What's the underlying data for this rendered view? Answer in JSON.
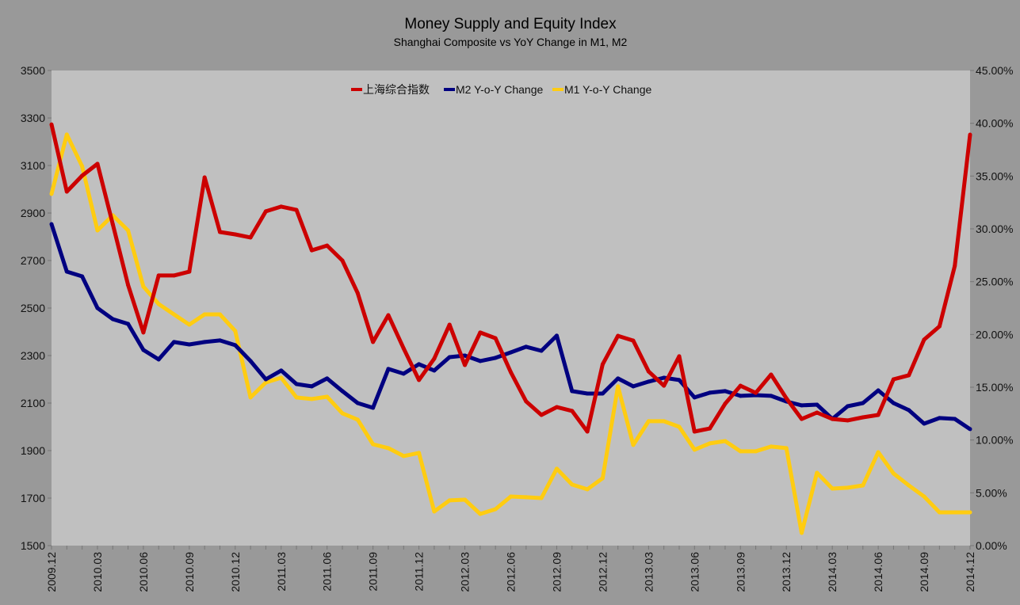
{
  "chart_data": {
    "type": "line",
    "title": "Money Supply and Equity Index",
    "subtitle": "Shanghai Composite vs YoY Change in M1, M2",
    "x": [
      "2009.12",
      "2010.01",
      "2010.02",
      "2010.03",
      "2010.04",
      "2010.05",
      "2010.06",
      "2010.07",
      "2010.08",
      "2010.09",
      "2010.10",
      "2010.11",
      "2010.12",
      "2011.01",
      "2011.02",
      "2011.03",
      "2011.04",
      "2011.05",
      "2011.06",
      "2011.07",
      "2011.08",
      "2011.09",
      "2011.10",
      "2011.11",
      "2011.12",
      "2012.01",
      "2012.02",
      "2012.03",
      "2012.04",
      "2012.05",
      "2012.06",
      "2012.07",
      "2012.08",
      "2012.09",
      "2012.10",
      "2012.11",
      "2012.12",
      "2013.01",
      "2013.02",
      "2013.03",
      "2013.04",
      "2013.05",
      "2013.06",
      "2013.07",
      "2013.08",
      "2013.09",
      "2013.10",
      "2013.11",
      "2013.12",
      "2014.01",
      "2014.02",
      "2014.03",
      "2014.04",
      "2014.05",
      "2014.06",
      "2014.07",
      "2014.08",
      "2014.09",
      "2014.10",
      "2014.11",
      "2014.12"
    ],
    "x_tick_labels": [
      "2009.12",
      "2010.03",
      "2010.06",
      "2010.09",
      "2010.12",
      "2011.03",
      "2011.06",
      "2011.09",
      "2011.12",
      "2012.03",
      "2012.06",
      "2012.09",
      "2012.12",
      "2013.03",
      "2013.06",
      "2013.09",
      "2013.12",
      "2014.03",
      "2014.06",
      "2014.09",
      "2014.12"
    ],
    "y_left": {
      "min": 1500,
      "max": 3500,
      "ticks": [
        "1500",
        "1700",
        "1900",
        "2100",
        "2300",
        "2500",
        "2700",
        "2900",
        "3100",
        "3300",
        "3500"
      ]
    },
    "y_right": {
      "min": 0,
      "max": 45,
      "ticks": [
        "0.00%",
        "5.00%",
        "10.00%",
        "15.00%",
        "20.00%",
        "25.00%",
        "30.00%",
        "35.00%",
        "40.00%",
        "45.00%"
      ]
    },
    "legend_position": "top-center",
    "grid": false,
    "series": [
      {
        "name": "上海综合指数",
        "axis": "left",
        "color": "#cc0000",
        "values": [
          3273,
          2990,
          3057,
          3107,
          2853,
          2597,
          2397,
          2637,
          2637,
          2653,
          3050,
          2820,
          2810,
          2797,
          2907,
          2927,
          2913,
          2743,
          2763,
          2700,
          2563,
          2357,
          2470,
          2330,
          2197,
          2287,
          2430,
          2260,
          2397,
          2373,
          2230,
          2107,
          2050,
          2083,
          2067,
          1980,
          2263,
          2383,
          2363,
          2233,
          2173,
          2297,
          1980,
          1993,
          2097,
          2173,
          2143,
          2220,
          2120,
          2033,
          2060,
          2033,
          2027,
          2040,
          2050,
          2200,
          2217,
          2367,
          2423,
          2677,
          3230
        ]
      },
      {
        "name": "M2 Y-o-Y Change",
        "axis": "right",
        "color": "#000080",
        "values": [
          30.45,
          25.95,
          25.5,
          22.5,
          21.45,
          21.0,
          18.53,
          17.63,
          19.28,
          19.05,
          19.28,
          19.43,
          18.98,
          17.48,
          15.75,
          16.58,
          15.3,
          15.08,
          15.83,
          14.63,
          13.5,
          13.05,
          16.73,
          16.28,
          17.18,
          16.58,
          17.85,
          18.0,
          17.48,
          17.78,
          18.3,
          18.83,
          18.45,
          19.88,
          14.63,
          14.4,
          14.4,
          15.83,
          15.08,
          15.53,
          15.9,
          15.68,
          14.03,
          14.48,
          14.63,
          14.18,
          14.25,
          14.18,
          13.65,
          13.28,
          13.35,
          12.0,
          13.2,
          13.5,
          14.7,
          13.5,
          12.83,
          11.55,
          12.08,
          12.0,
          11.03
        ]
      },
      {
        "name": "M1 Y-o-Y Change",
        "axis": "right",
        "color": "#ffcc11",
        "values": [
          33.3,
          38.93,
          35.93,
          29.85,
          31.28,
          29.85,
          24.53,
          22.88,
          21.9,
          20.93,
          21.9,
          21.9,
          20.33,
          14.03,
          15.45,
          15.9,
          14.03,
          13.88,
          14.1,
          12.53,
          11.93,
          9.6,
          9.23,
          8.48,
          8.78,
          3.23,
          4.28,
          4.35,
          3.0,
          3.45,
          4.65,
          4.58,
          4.5,
          7.28,
          5.78,
          5.33,
          6.38,
          15.08,
          9.53,
          11.78,
          11.78,
          11.25,
          9.08,
          9.68,
          9.9,
          8.93,
          8.93,
          9.38,
          9.23,
          1.2,
          6.9,
          5.4,
          5.48,
          5.7,
          8.85,
          6.83,
          5.7,
          4.65,
          3.15,
          3.15,
          3.15
        ]
      }
    ]
  }
}
